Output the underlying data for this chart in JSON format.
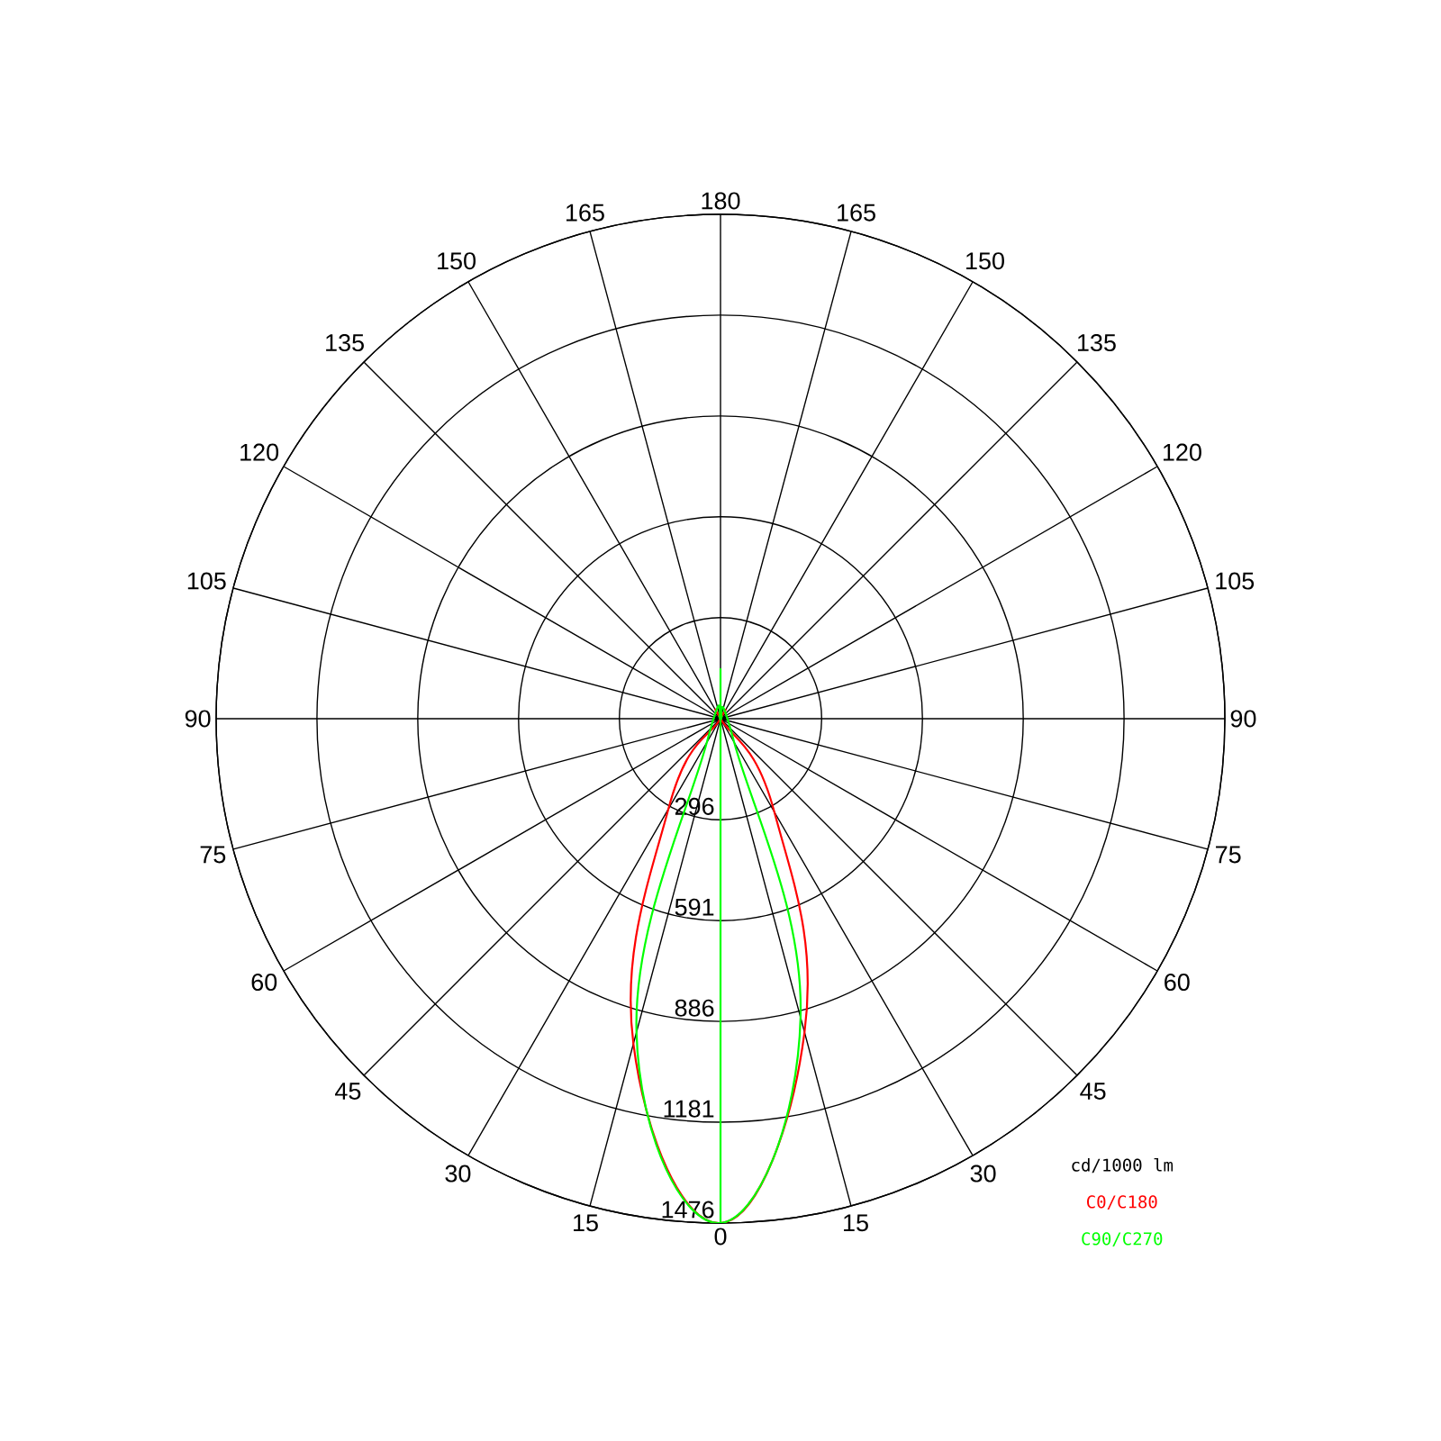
{
  "chart_data": {
    "type": "radar",
    "categories": [
      "180",
      "165",
      "150",
      "135",
      "120",
      "105",
      "90",
      "75",
      "60",
      "45",
      "30",
      "15",
      "0",
      "15",
      "30",
      "45",
      "60",
      "75",
      "90",
      "105",
      "120",
      "135",
      "150",
      "165"
    ],
    "series": [
      {
        "name": "C0/C180",
        "color": "#ff0000",
        "values": [
          0,
          0,
          0,
          0,
          0,
          0,
          0,
          0,
          0,
          0,
          315,
          950,
          1476,
          985,
          305,
          0,
          0,
          0,
          0,
          0,
          0,
          0,
          0,
          0
        ]
      },
      {
        "name": "C90/C270",
        "color": "#00ff00",
        "values": [
          0,
          0,
          0,
          0,
          0,
          0,
          0,
          0,
          0,
          0,
          80,
          905,
          1476,
          950,
          80,
          0,
          0,
          0,
          0,
          0,
          0,
          0,
          0,
          0
        ]
      },
      {
        "color": "#00ff00",
        "values": [
          0,
          0,
          0,
          0,
          0,
          0,
          0,
          0,
          0,
          0,
          0,
          0,
          1476,
          0,
          0,
          0,
          0,
          0,
          0,
          0,
          0,
          0,
          0,
          0
        ]
      }
    ],
    "ylim": [
      0,
      1476
    ],
    "yticks": [
      296,
      591,
      886,
      1181,
      1476
    ],
    "grid": true,
    "annotations": [
      "cd/1000 lm"
    ],
    "marker": "none",
    "line_style": "solid"
  }
}
